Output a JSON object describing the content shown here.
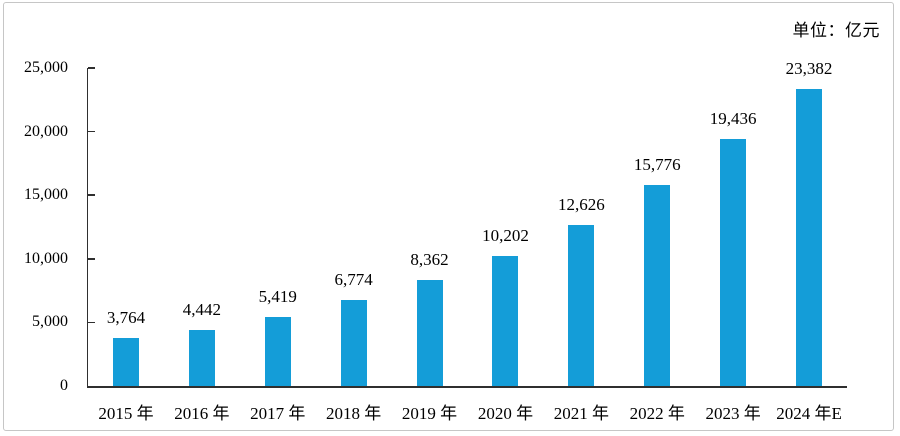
{
  "unit_label": "单位：亿元",
  "colors": {
    "bar": "#149dd8",
    "axis": "#2f2f2f",
    "frame_border": "#c6c6c6",
    "text": "#000000"
  },
  "chart_data": {
    "type": "bar",
    "title": "",
    "subtitle_right": "单位：亿元",
    "categories": [
      "2015 年",
      "2016 年",
      "2017 年",
      "2018 年",
      "2019 年",
      "2020 年",
      "2021 年",
      "2022 年",
      "2023 年",
      "2024 年E"
    ],
    "values": [
      3764,
      4442,
      5419,
      6774,
      8362,
      10202,
      12626,
      15776,
      19436,
      23382
    ],
    "value_labels": [
      "3,764",
      "4,442",
      "5,419",
      "6,774",
      "8,362",
      "10,202",
      "12,626",
      "15,776",
      "19,436",
      "23,382"
    ],
    "xlabel": "",
    "ylabel": "",
    "ylim": [
      0,
      25000
    ],
    "ytick_interval": 5000,
    "ytick_labels": [
      "0",
      "5,000",
      "10,000",
      "15,000",
      "20,000",
      "25,000"
    ],
    "grid": false,
    "legend": "none"
  }
}
